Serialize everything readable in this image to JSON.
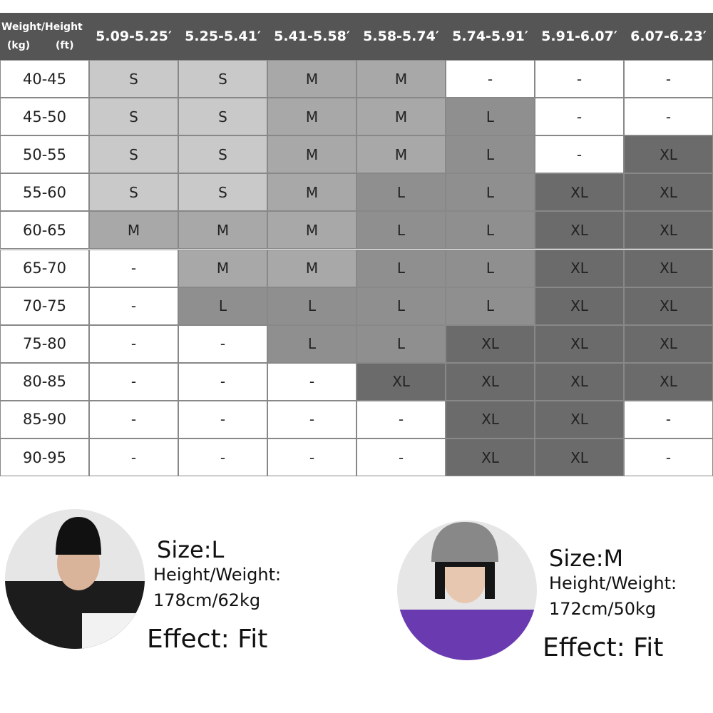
{
  "table": {
    "corner": {
      "top": "Weight/Height",
      "left": "(kg)",
      "right": "(ft)"
    },
    "columns": [
      "5.09-5.25′",
      "5.25-5.41′",
      "5.41-5.58′",
      "5.58-5.74′",
      "5.74-5.91′",
      "5.91-6.07′",
      "6.07-6.23′"
    ],
    "size_colors": {
      "S": "#c9c9c9",
      "M": "#a8a8a8",
      "L": "#8f8f8f",
      "XL": "#6b6b6b",
      "-": "#ffffff"
    },
    "rows": [
      {
        "label": "40-45",
        "cells": [
          "S",
          "S",
          "M",
          "M",
          "-",
          "-",
          "-"
        ]
      },
      {
        "label": "45-50",
        "cells": [
          "S",
          "S",
          "M",
          "M",
          "L",
          "-",
          "-"
        ]
      },
      {
        "label": "50-55",
        "cells": [
          "S",
          "S",
          "M",
          "M",
          "L",
          "-",
          "XL"
        ]
      },
      {
        "label": "55-60",
        "cells": [
          "S",
          "S",
          "M",
          "L",
          "L",
          "XL",
          "XL"
        ]
      },
      {
        "label": "60-65",
        "cells": [
          "M",
          "M",
          "M",
          "L",
          "L",
          "XL",
          "XL"
        ]
      },
      {
        "label": "65-70",
        "cells": [
          "-",
          "M",
          "M",
          "L",
          "L",
          "XL",
          "XL"
        ]
      },
      {
        "label": "70-75",
        "cells": [
          "-",
          "L",
          "L",
          "L",
          "L",
          "XL",
          "XL"
        ]
      },
      {
        "label": "75-80",
        "cells": [
          "-",
          "-",
          "L",
          "L",
          "XL",
          "XL",
          "XL"
        ]
      },
      {
        "label": "80-85",
        "cells": [
          "-",
          "-",
          "-",
          "XL",
          "XL",
          "XL",
          "XL"
        ]
      },
      {
        "label": "85-90",
        "cells": [
          "-",
          "-",
          "-",
          "-",
          "XL",
          "XL",
          "-"
        ]
      },
      {
        "label": "90-95",
        "cells": [
          "-",
          "-",
          "-",
          "-",
          "XL",
          "XL",
          "-"
        ]
      }
    ]
  },
  "models": [
    {
      "size": "Size:L",
      "hw_label": "Height/Weight:",
      "hw": "178cm/62kg",
      "effect": "Effect: Fit"
    },
    {
      "size": "Size:M",
      "hw_label": "Height/Weight:",
      "hw": "172cm/50kg",
      "effect": "Effect: Fit"
    }
  ]
}
